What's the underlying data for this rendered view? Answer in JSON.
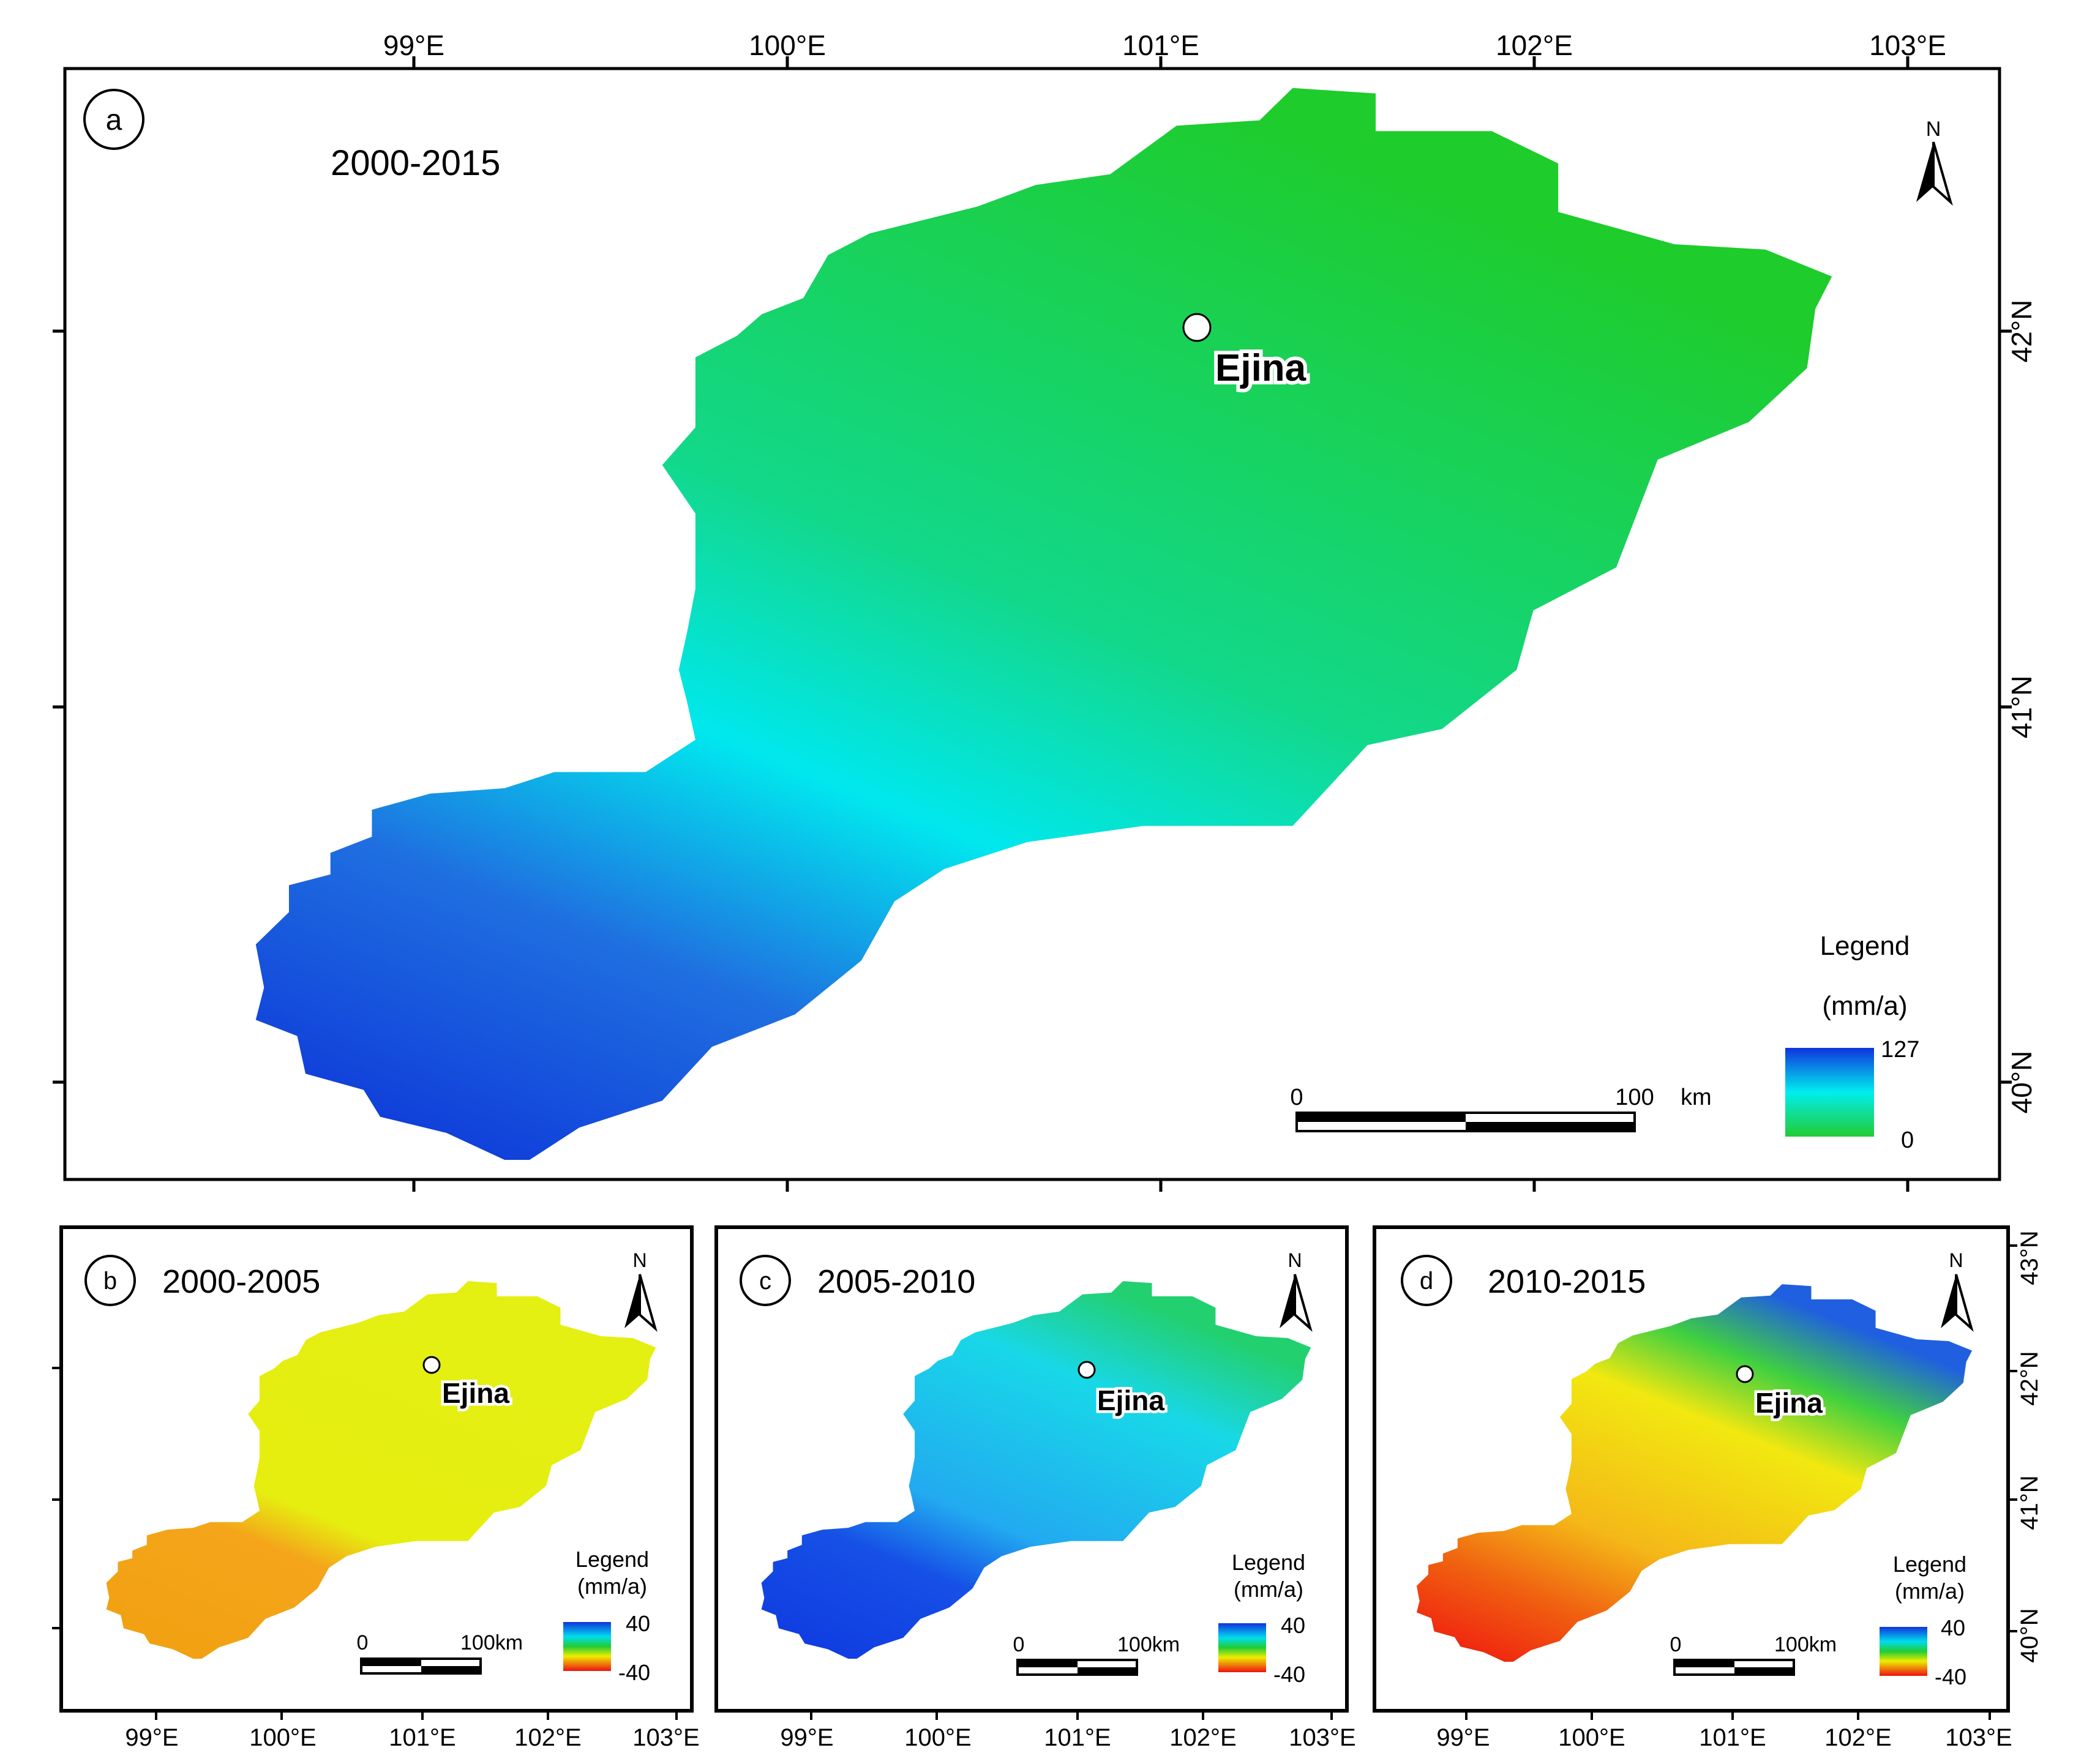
{
  "figure": {
    "place": "Ejina",
    "north_label": "N",
    "panel_a": {
      "letter": "a",
      "period": "2000-2015",
      "legend_title": "Legend",
      "legend_unit": "(mm/a)",
      "legend_max": "127",
      "legend_min": "0",
      "scale_zero": "0",
      "scale_end": "100",
      "scale_unit": "km",
      "colors": {
        "low": "#22cc33",
        "mid": "#00eeee",
        "high": "#1133dd"
      }
    },
    "panel_b": {
      "letter": "b",
      "period": "2000-2005",
      "legend_title": "Legend",
      "legend_unit": "(mm/a)",
      "legend_max": "40",
      "legend_min": "-40",
      "scale_zero": "0",
      "scale_end": "100km"
    },
    "panel_c": {
      "letter": "c",
      "period": "2005-2010",
      "legend_title": "Legend",
      "legend_unit": "(mm/a)",
      "legend_max": "40",
      "legend_min": "-40",
      "scale_zero": "0",
      "scale_end": "100km"
    },
    "panel_d": {
      "letter": "d",
      "period": "2010-2015",
      "legend_title": "Legend",
      "legend_unit": "(mm/a)",
      "legend_max": "40",
      "legend_min": "-40",
      "scale_zero": "0",
      "scale_end": "100km"
    },
    "lon_labels": [
      "99°E",
      "100°E",
      "101°E",
      "102°E",
      "103°E"
    ],
    "lat_labels": [
      "42°N",
      "41°N",
      "40°N"
    ],
    "lat_labels_d": [
      "43°N",
      "42°N",
      "41°N",
      "40°N"
    ]
  }
}
